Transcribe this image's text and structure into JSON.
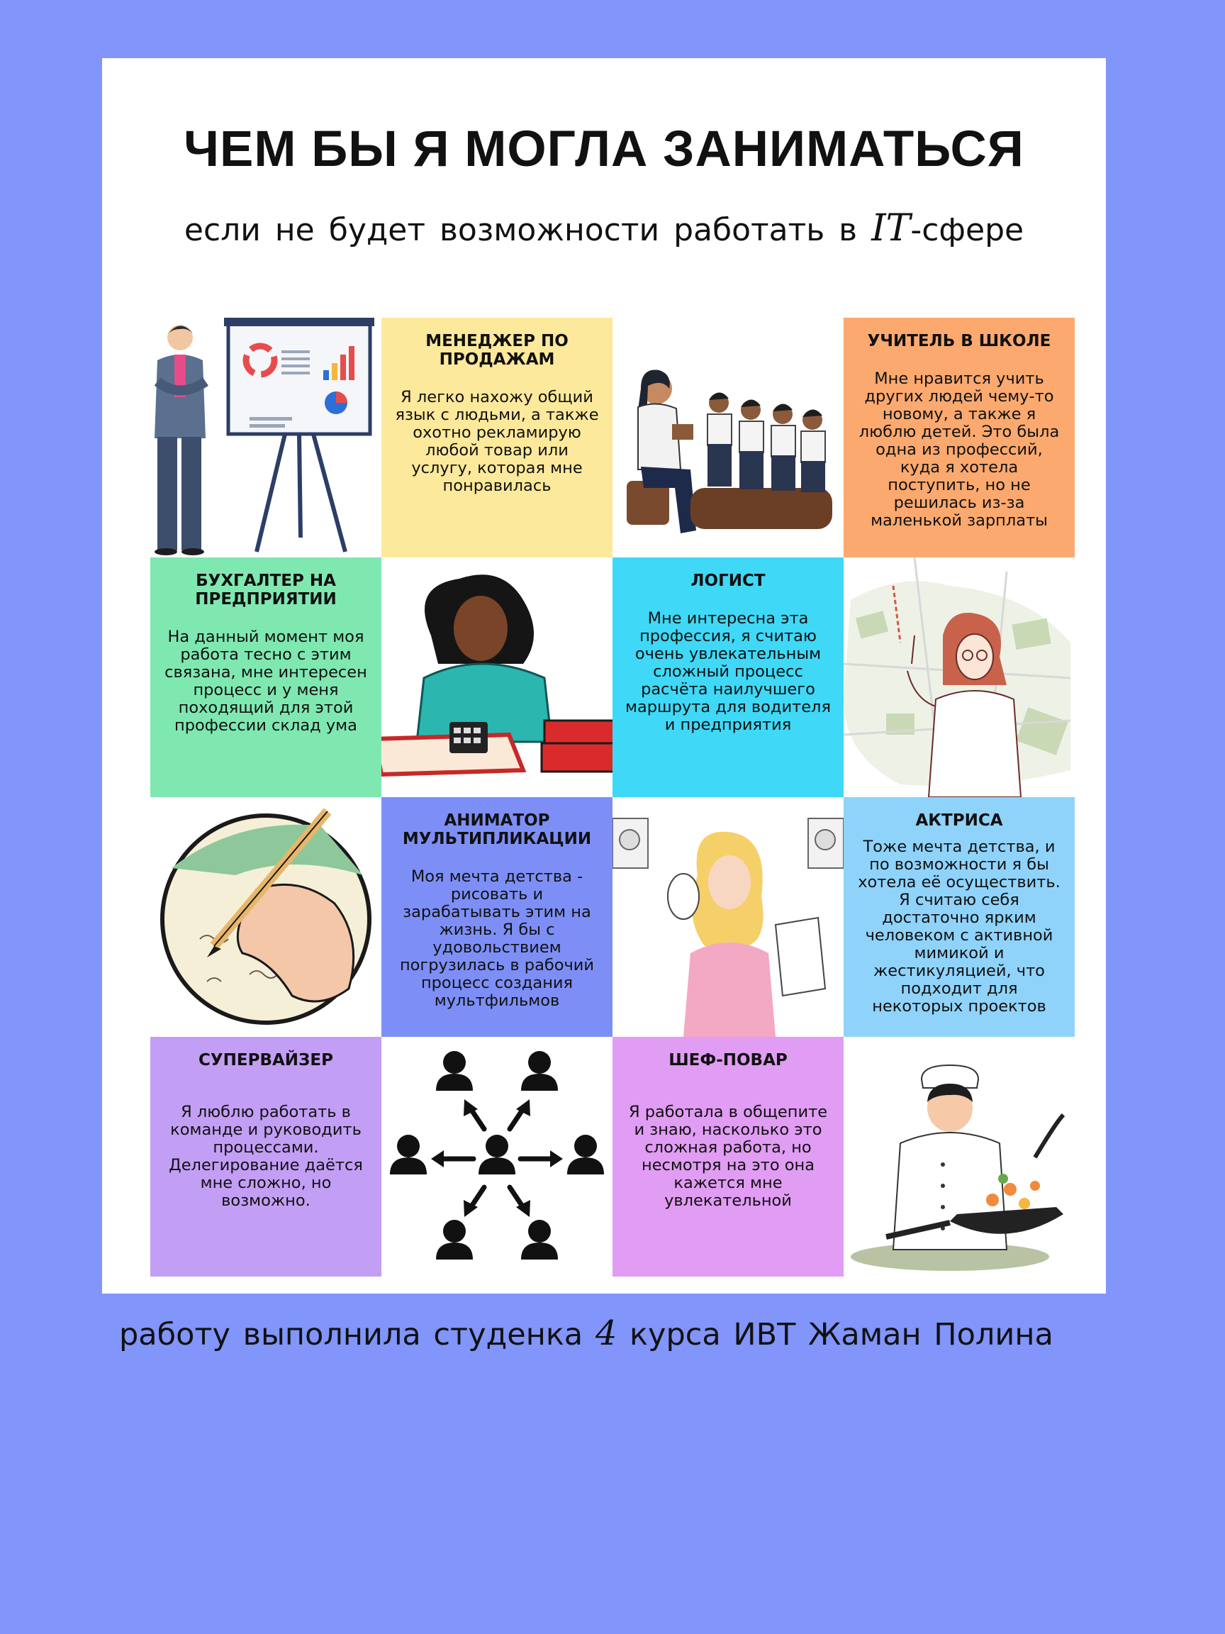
{
  "poster": {
    "title": "ЧЕМ БЫ Я МОГЛА ЗАНИМАТЬСЯ",
    "subtitle_before": "если не будет возможности работать в",
    "subtitle_script": "IT",
    "subtitle_after": "-сфере"
  },
  "cards": {
    "manager": {
      "title": "МЕНЕДЖЕР ПО ПРОДАЖАМ",
      "text": "Я легко нахожу общий язык с людьми, а также охотно рекламирую любой товар или услугу, которая мне понравилась",
      "color": "#fde99b"
    },
    "teacher": {
      "title": "УЧИТЕЛЬ В ШКОЛЕ",
      "text": "Мне нравится учить других людей чему-то новому, а также я люблю детей. Это была одна из профессий, куда я хотела поступить, но не решилась из-за маленькой зарплаты",
      "color": "#fba96f"
    },
    "accountant": {
      "title": "БУХГАЛТЕР НА ПРЕДПРИЯТИИ",
      "text": "На данный момент моя работа тесно с этим связана, мне интересен процесс и у меня походящий для этой профессии склад ума",
      "color": "#7fe8b1"
    },
    "logist": {
      "title": "ЛОГИСТ",
      "text": "Мне интересна эта профессия, я считаю очень увлекательным сложный процесс расчёта наилучшего маршрута для водителя и предприятия",
      "color": "#3fd8f6"
    },
    "animator": {
      "title": "АНИМАТОР МУЛЬТИПЛИКАЦИИ",
      "text": "Моя мечта детства - рисовать и зарабатывать этим на жизнь. Я бы с удовольствием погрузилась в рабочий процесс создания мультфильмов",
      "color": "#7d8ff7"
    },
    "actress": {
      "title": "АКТРИСА",
      "text": "Тоже мечта детства, и по возможности я бы хотела её осуществить. Я считаю себя достаточно ярким человеком с активной мимикой и жестикуляцией, что подходит для некоторых проектов",
      "color": "#8fd3fb"
    },
    "supervisor": {
      "title": "СУПЕРВАЙЗЕР",
      "text": "Я люблю работать в команде и руководить процессами. Делегирование даётся мне сложно, но возможно.",
      "color": "#c39ef5"
    },
    "chef": {
      "title": "ШЕФ-ПОВАР",
      "text": "Я работала в общепите и знаю, насколько это сложная работа, но несмотря на это она кажется мне увлекательной",
      "color": "#e19cf3"
    }
  },
  "illustrations": {
    "presenter": "businessman-presentation-icon",
    "teacher": "teacher-reading-to-children-icon",
    "accountant": "woman-with-calculator-icon",
    "logist": "woman-with-city-map-icon",
    "drawing": "hand-drawing-with-pencil-icon",
    "actress": "actress-with-mask-icon",
    "team": "team-delegation-network-icon",
    "chef": "chef-cooking-wok-icon"
  },
  "footer": {
    "before": "работу выполнила студенка",
    "number": "4",
    "after": "курса ИВТ Жаман Полина"
  }
}
